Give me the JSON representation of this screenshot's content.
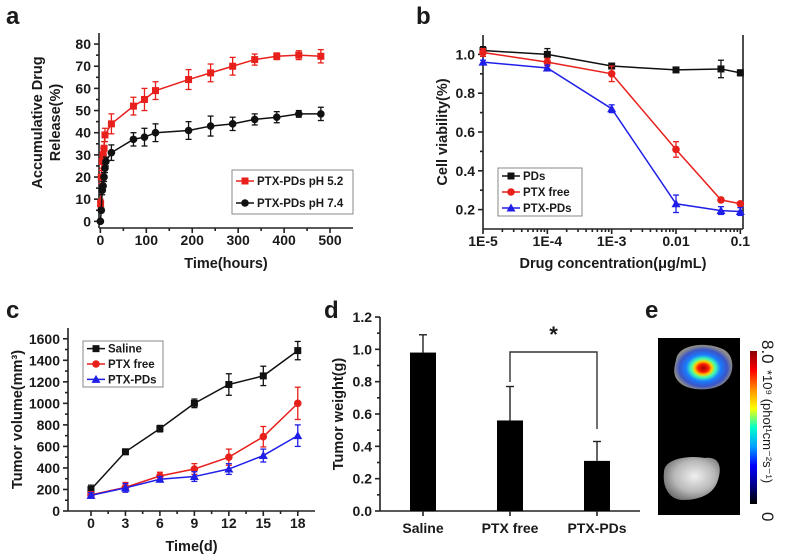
{
  "chart_data": [
    {
      "panel": "a",
      "type": "line",
      "xlabel": "Time(hours)",
      "ylabel": [
        "Accumulative Drug",
        "Release(%)"
      ],
      "xscale": "linear",
      "xlim": [
        -3,
        550
      ],
      "ylim": [
        -3,
        85
      ],
      "xticks": [
        0,
        100,
        200,
        300,
        400,
        500
      ],
      "yticks": [
        0,
        10,
        20,
        30,
        40,
        50,
        60,
        70,
        80
      ],
      "legend_position": "bottom-right",
      "series": [
        {
          "name": "PTX-PDs pH 5.2",
          "color": "#e8201c",
          "marker": "square",
          "x": [
            0.5,
            2,
            4,
            6,
            8,
            10,
            24,
            72,
            96,
            120,
            192,
            240,
            288,
            336,
            384,
            432,
            480
          ],
          "y": [
            8,
            20,
            27,
            30,
            33,
            39,
            44,
            52,
            55,
            59,
            64,
            67,
            70,
            73,
            74.5,
            75,
            74.5
          ],
          "err": [
            2,
            3,
            3,
            3,
            3,
            3,
            4.5,
            4,
            5,
            4,
            4.5,
            4,
            4,
            2.5,
            1.5,
            2,
            3
          ]
        },
        {
          "name": "PTX-PDs pH 7.4",
          "color": "#111111",
          "marker": "circle",
          "x": [
            0,
            2,
            4,
            6,
            8,
            10,
            12,
            24,
            72,
            96,
            120,
            192,
            240,
            288,
            336,
            384,
            432,
            480
          ],
          "y": [
            0,
            5,
            14,
            16,
            20,
            24,
            27,
            31,
            37,
            38,
            40,
            41,
            43,
            44,
            46,
            47,
            48.5,
            48.5
          ],
          "err": [
            0,
            1,
            2,
            2,
            2,
            2,
            2,
            3.5,
            3,
            4,
            4,
            4,
            4.5,
            3,
            2.5,
            2.5,
            1.5,
            3
          ]
        }
      ]
    },
    {
      "panel": "b",
      "type": "line",
      "xlabel": "Drug concentration(μg/mL)",
      "ylabel": "Cell viability(%)",
      "xscale": "log",
      "xlim": [
        1e-05,
        0.11
      ],
      "ylim": [
        0.1,
        1.1
      ],
      "xticks": [
        1e-05,
        0.0001,
        0.001,
        0.01,
        0.1
      ],
      "xticklabels": [
        "1E-5",
        "1E-4",
        "1E-3",
        "0.01",
        "0.1"
      ],
      "yticks": [
        0.2,
        0.4,
        0.6,
        0.8,
        1.0
      ],
      "yticklabels": [
        "0.2",
        "0.4",
        "0.6",
        "0.8",
        "1.0"
      ],
      "legend_position": "bottom-left",
      "series": [
        {
          "name": "PDs",
          "color": "#111111",
          "marker": "square",
          "x": [
            1e-05,
            0.0001,
            0.001,
            0.01,
            0.05,
            0.1
          ],
          "y": [
            1.02,
            1.0,
            0.94,
            0.92,
            0.925,
            0.905
          ],
          "err": [
            0.02,
            0.03,
            0.01,
            0.01,
            0.045,
            0.015
          ]
        },
        {
          "name": "PTX free",
          "color": "#e8201c",
          "marker": "circle",
          "x": [
            1e-05,
            0.0001,
            0.001,
            0.01,
            0.05,
            0.1
          ],
          "y": [
            1.01,
            0.96,
            0.9,
            0.51,
            0.25,
            0.23
          ],
          "err": [
            0.02,
            0.02,
            0.04,
            0.04,
            0.01,
            0.01
          ]
        },
        {
          "name": "PTX-PDs",
          "color": "#1f1fe8",
          "marker": "triangle",
          "x": [
            1e-05,
            0.0001,
            0.001,
            0.01,
            0.05,
            0.1
          ],
          "y": [
            0.96,
            0.93,
            0.72,
            0.23,
            0.195,
            0.19
          ],
          "err": [
            0.01,
            0.015,
            0.02,
            0.045,
            0.02,
            0.02
          ]
        }
      ]
    },
    {
      "panel": "c",
      "type": "line",
      "xlabel": "Time(d)",
      "ylabel": "Tumor volume(mm³)",
      "xscale": "linear",
      "xlim": [
        -2,
        19.5
      ],
      "ylim": [
        0,
        1700
      ],
      "xticks": [
        0,
        3,
        6,
        9,
        12,
        15,
        18
      ],
      "yticks": [
        0,
        200,
        400,
        600,
        800,
        1000,
        1200,
        1400,
        1600
      ],
      "legend_position": "top-left",
      "series": [
        {
          "name": "Saline",
          "color": "#111111",
          "marker": "square",
          "x": [
            0,
            3,
            6,
            9,
            12,
            15,
            18
          ],
          "y": [
            200,
            550,
            765,
            1000,
            1175,
            1255,
            1490
          ],
          "err": [
            40,
            25,
            30,
            40,
            100,
            90,
            85
          ]
        },
        {
          "name": "PTX free",
          "color": "#e8201c",
          "marker": "circle",
          "x": [
            0,
            3,
            6,
            9,
            12,
            15,
            18
          ],
          "y": [
            150,
            220,
            325,
            390,
            500,
            690,
            1000
          ],
          "err": [
            30,
            45,
            35,
            50,
            75,
            95,
            150
          ]
        },
        {
          "name": "PTX-PDs",
          "color": "#1f1fe8",
          "marker": "triangle",
          "x": [
            0,
            3,
            6,
            9,
            12,
            15,
            18
          ],
          "y": [
            145,
            215,
            295,
            320,
            390,
            515,
            700
          ],
          "err": [
            25,
            40,
            25,
            45,
            50,
            60,
            100
          ]
        }
      ]
    },
    {
      "panel": "d",
      "type": "bar",
      "ylabel": "Tumor weight(g)",
      "categories": [
        "Saline",
        "PTX free",
        "PTX-PDs"
      ],
      "values": [
        0.98,
        0.56,
        0.31
      ],
      "err": [
        0.11,
        0.21,
        0.12
      ],
      "ylim": [
        0,
        1.2
      ],
      "yticks": [
        0.0,
        0.2,
        0.4,
        0.6,
        0.8,
        1.0,
        1.2
      ],
      "yticklabels": [
        "0.0",
        "0.2",
        "0.4",
        "0.6",
        "0.8",
        "1.0",
        "1.2"
      ],
      "significance": {
        "between": [
          "PTX free",
          "PTX-PDs"
        ],
        "label": "*"
      },
      "bar_color": "#000000"
    }
  ],
  "panel_e": {
    "label": "e",
    "colorbar_max": "8.0",
    "colorbar_min": "0",
    "colorbar_unit": "*10⁹ (phot¹cm⁻²s⁻¹)",
    "colormap": [
      "#8b0000",
      "#ff0000",
      "#ff8c00",
      "#ffff00",
      "#00ffcc",
      "#00a0ff",
      "#0000ff",
      "#00008b",
      "#000000"
    ]
  },
  "panel_labels": [
    "a",
    "b",
    "c",
    "d",
    "e"
  ]
}
